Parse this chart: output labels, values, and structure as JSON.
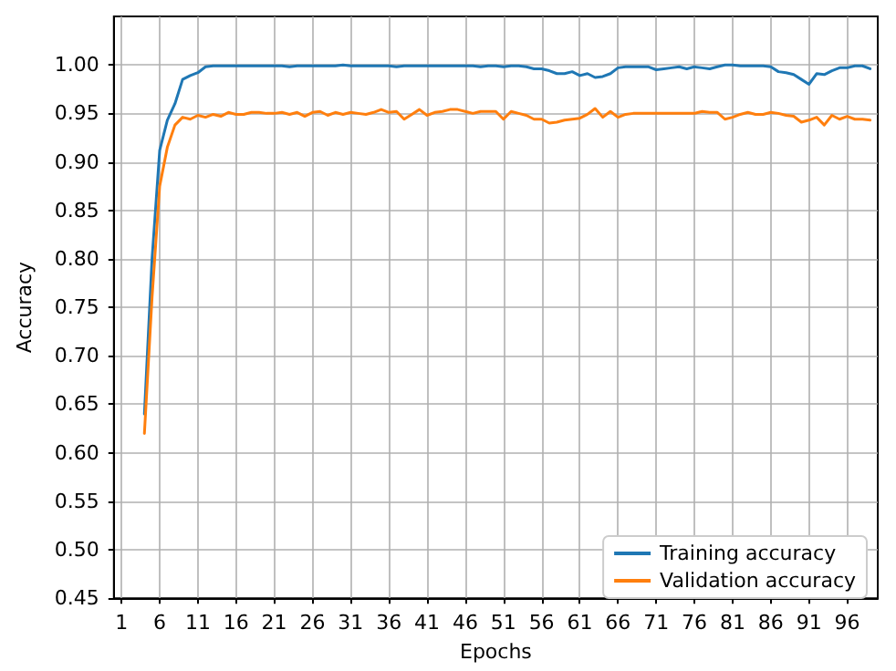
{
  "chart_data": {
    "type": "line",
    "xlabel": "Epochs",
    "ylabel": "Accuracy",
    "xlim": [
      0,
      100
    ],
    "xticks": [
      1,
      6,
      11,
      16,
      21,
      26,
      31,
      36,
      41,
      46,
      51,
      56,
      61,
      66,
      71,
      76,
      81,
      86,
      91,
      96
    ],
    "ylim": [
      0.45,
      1.05
    ],
    "yticks": [
      0.45,
      {
        "value": 0.5,
        "label": "0.50"
      },
      0.55,
      {
        "value": 0.6,
        "label": "0.60"
      },
      0.65,
      {
        "value": 0.7,
        "label": "0.70"
      },
      0.75,
      {
        "value": 0.8,
        "label": "0.80"
      },
      0.85,
      {
        "value": 0.9,
        "label": "0.90"
      },
      0.95,
      {
        "value": 1.0,
        "label": "1.00"
      }
    ],
    "grid": true,
    "legend": "bottom right",
    "line_style": "solid",
    "series": [
      {
        "name": "Training accuracy",
        "color": "#1f77b4",
        "x": [
          4,
          5,
          6,
          7,
          8,
          9,
          10,
          11,
          12,
          13,
          14,
          15,
          16,
          17,
          18,
          19,
          20,
          21,
          22,
          23,
          24,
          25,
          26,
          27,
          28,
          29,
          30,
          31,
          32,
          33,
          34,
          35,
          36,
          37,
          38,
          39,
          40,
          41,
          42,
          43,
          44,
          45,
          46,
          47,
          48,
          49,
          50,
          51,
          52,
          53,
          54,
          55,
          56,
          57,
          58,
          59,
          60,
          61,
          62,
          63,
          64,
          65,
          66,
          67,
          68,
          69,
          70,
          71,
          72,
          73,
          74,
          75,
          76,
          77,
          78,
          79,
          80,
          81,
          82,
          83,
          84,
          85,
          86,
          87,
          88,
          89,
          90,
          91,
          92,
          93,
          94,
          95,
          96,
          97,
          98,
          99
        ],
        "values": [
          0.64,
          0.8,
          0.912,
          0.943,
          0.96,
          0.985,
          0.989,
          0.992,
          0.998,
          0.999,
          0.999,
          0.999,
          0.999,
          0.999,
          0.999,
          0.999,
          0.999,
          0.999,
          0.999,
          0.998,
          0.999,
          0.999,
          0.999,
          0.999,
          0.999,
          0.999,
          1.0,
          0.999,
          0.999,
          0.999,
          0.999,
          0.999,
          0.999,
          0.998,
          0.999,
          0.999,
          0.999,
          0.999,
          0.999,
          0.999,
          0.999,
          0.999,
          0.999,
          0.999,
          0.998,
          0.999,
          0.999,
          0.998,
          0.999,
          0.999,
          0.998,
          0.996,
          0.996,
          0.994,
          0.991,
          0.991,
          0.993,
          0.989,
          0.991,
          0.987,
          0.988,
          0.991,
          0.997,
          0.998,
          0.998,
          0.998,
          0.998,
          0.995,
          0.996,
          0.997,
          0.998,
          0.996,
          0.998,
          0.997,
          0.996,
          0.998,
          1.0,
          1.0,
          0.999,
          0.999,
          0.999,
          0.999,
          0.998,
          0.993,
          0.992,
          0.99,
          0.985,
          0.98,
          0.991,
          0.99,
          0.994,
          0.997,
          0.997,
          0.999,
          0.999,
          0.996
        ]
      },
      {
        "name": "Validation accuracy",
        "color": "#ff7f0e",
        "x": [
          4,
          5,
          6,
          7,
          8,
          9,
          10,
          11,
          12,
          13,
          14,
          15,
          16,
          17,
          18,
          19,
          20,
          21,
          22,
          23,
          24,
          25,
          26,
          27,
          28,
          29,
          30,
          31,
          32,
          33,
          34,
          35,
          36,
          37,
          38,
          39,
          40,
          41,
          42,
          43,
          44,
          45,
          46,
          47,
          48,
          49,
          50,
          51,
          52,
          53,
          54,
          55,
          56,
          57,
          58,
          59,
          60,
          61,
          62,
          63,
          64,
          65,
          66,
          67,
          68,
          69,
          70,
          71,
          72,
          73,
          74,
          75,
          76,
          77,
          78,
          79,
          80,
          81,
          82,
          83,
          84,
          85,
          86,
          87,
          88,
          89,
          90,
          91,
          92,
          93,
          94,
          95,
          96,
          97,
          98,
          99
        ],
        "values": [
          0.62,
          0.76,
          0.875,
          0.915,
          0.938,
          0.946,
          0.944,
          0.948,
          0.946,
          0.949,
          0.947,
          0.951,
          0.949,
          0.949,
          0.951,
          0.951,
          0.95,
          0.95,
          0.951,
          0.949,
          0.951,
          0.947,
          0.951,
          0.952,
          0.948,
          0.951,
          0.949,
          0.951,
          0.95,
          0.949,
          0.951,
          0.954,
          0.951,
          0.952,
          0.944,
          0.949,
          0.954,
          0.948,
          0.951,
          0.952,
          0.954,
          0.954,
          0.952,
          0.95,
          0.952,
          0.952,
          0.952,
          0.944,
          0.952,
          0.95,
          0.948,
          0.944,
          0.944,
          0.94,
          0.941,
          0.943,
          0.944,
          0.945,
          0.949,
          0.955,
          0.946,
          0.952,
          0.946,
          0.949,
          0.95,
          0.95,
          0.95,
          0.95,
          0.95,
          0.95,
          0.95,
          0.95,
          0.95,
          0.952,
          0.951,
          0.951,
          0.944,
          0.946,
          0.949,
          0.951,
          0.949,
          0.949,
          0.951,
          0.95,
          0.948,
          0.947,
          0.941,
          0.943,
          0.946,
          0.938,
          0.948,
          0.944,
          0.947,
          0.944,
          0.944,
          0.943
        ]
      }
    ]
  }
}
